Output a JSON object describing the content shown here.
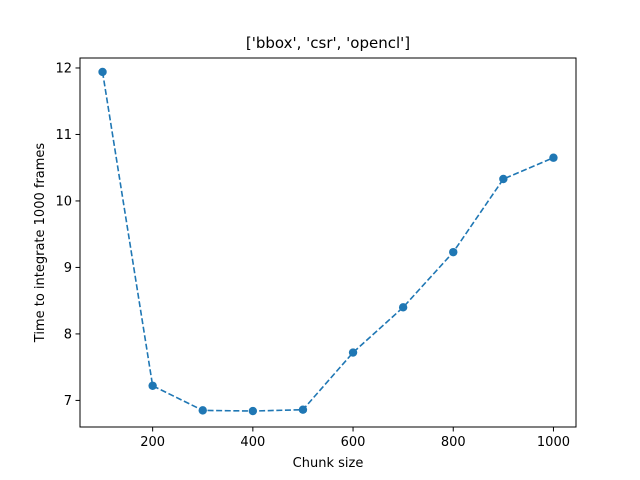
{
  "chart_data": {
    "type": "line",
    "title": "['bbox', 'csr', 'opencl']",
    "xlabel": "Chunk size",
    "ylabel": "Time to integrate 1000 frames",
    "xlim": [
      55,
      1045
    ],
    "ylim": [
      6.6,
      12.15
    ],
    "xticks": [
      200,
      400,
      600,
      800,
      1000
    ],
    "yticks": [
      7,
      8,
      9,
      10,
      11,
      12
    ],
    "grid": false,
    "series": [
      {
        "color": "#1f77b4",
        "linestyle": "dashed",
        "marker": "circle",
        "x": [
          100,
          200,
          300,
          400,
          500,
          600,
          700,
          800,
          900,
          1000
        ],
        "y": [
          11.94,
          7.22,
          6.85,
          6.84,
          6.86,
          7.72,
          8.4,
          9.23,
          10.33,
          10.65
        ]
      }
    ]
  }
}
